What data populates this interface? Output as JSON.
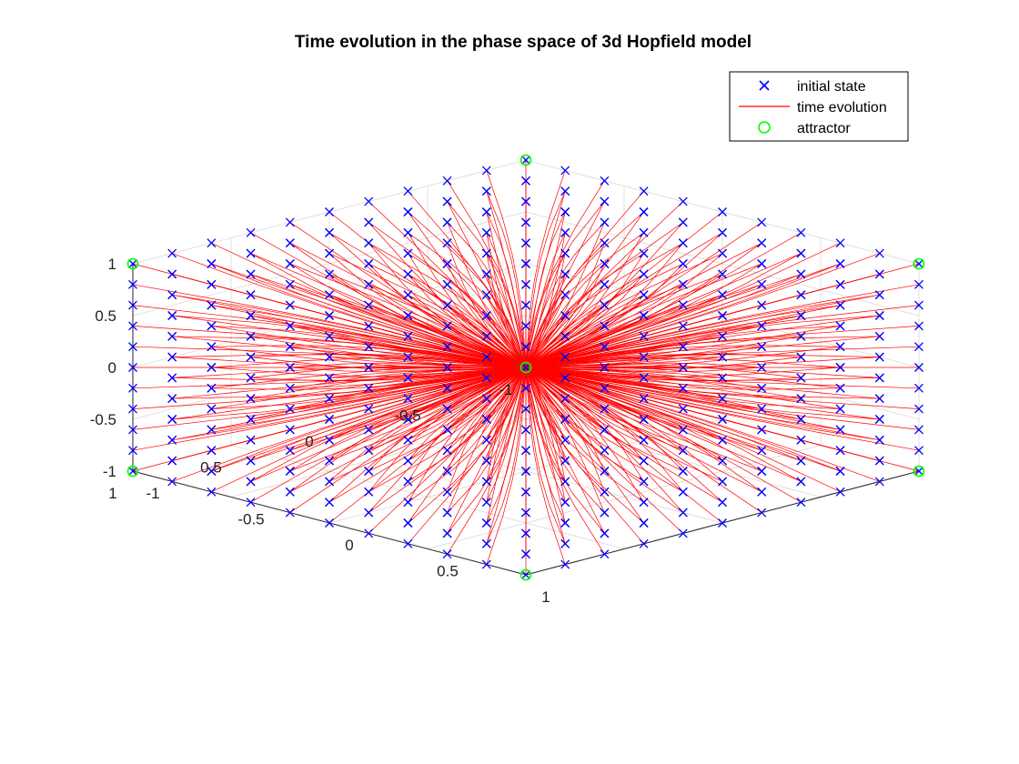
{
  "chart_data": {
    "type": "line",
    "title": "Time evolution in the phase space of 3d Hopfield model",
    "view": "3d-isometric",
    "axes": {
      "x": {
        "range": [
          -1,
          1
        ],
        "tick_labels": [
          "-1",
          "-0.5",
          "0",
          "0.5",
          "1"
        ]
      },
      "y": {
        "range": [
          -1,
          1
        ],
        "tick_labels": [
          "-1",
          "-0.5",
          "0",
          "0.5",
          "1"
        ]
      },
      "z": {
        "range": [
          -1,
          1
        ],
        "tick_labels": [
          "-1",
          "-0.5",
          "0",
          "0.5",
          "1"
        ]
      }
    },
    "grid": true,
    "legend_position": "top-right",
    "series": [
      {
        "name": "initial state",
        "marker": "x",
        "color": "#0000ff",
        "description_values": {
          "grid_start": -1,
          "grid_step": 0.2,
          "grid_end": 1
        }
      },
      {
        "name": "time evolution",
        "style": "line",
        "color": "#ff0000"
      },
      {
        "name": "attractor",
        "marker": "o",
        "color": "#00ff00",
        "points": [
          [
            1,
            1,
            1
          ],
          [
            -1,
            -1,
            1
          ],
          [
            1,
            -1,
            1
          ],
          [
            -1,
            1,
            1
          ],
          [
            1,
            1,
            -1
          ],
          [
            -1,
            -1,
            -1
          ],
          [
            1,
            -1,
            -1
          ],
          [
            -1,
            1,
            -1
          ]
        ]
      }
    ]
  }
}
